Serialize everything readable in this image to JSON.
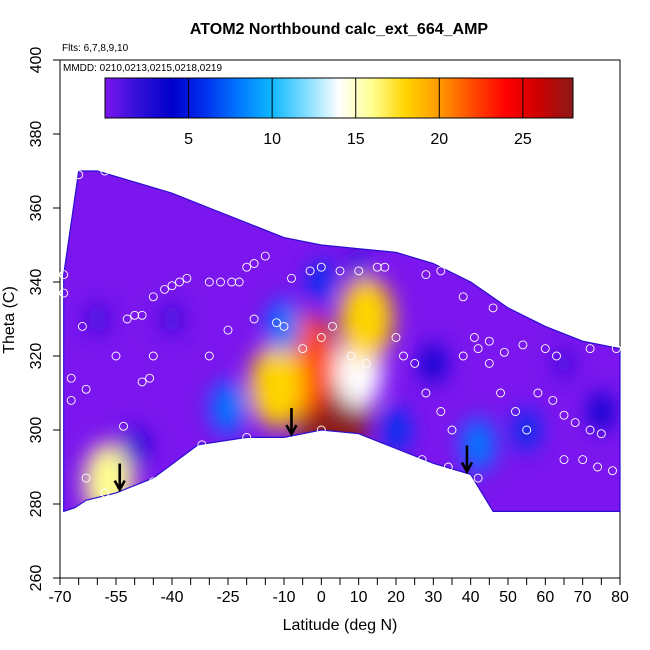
{
  "chart_data": {
    "type": "heatmap",
    "title": "ATOM2 Northbound calc_ext_664_AMP",
    "flights_note": "Flts: 6,7,8,9,10",
    "dates_note": "MMDD: 0210,0213,0215,0218,0219",
    "xlabel": "Latitude (deg N)",
    "ylabel": "Theta (C)",
    "xlim": [
      -70,
      80
    ],
    "ylim": [
      260,
      400
    ],
    "x_ticks": [
      -70,
      -55,
      -40,
      -25,
      -10,
      0,
      10,
      20,
      30,
      40,
      50,
      60,
      70,
      80
    ],
    "x_minor_ticks": [
      -65,
      -60,
      -50,
      -45,
      -35,
      -30,
      -20,
      -15,
      -5,
      5,
      15,
      25,
      35,
      45,
      55,
      65,
      75
    ],
    "y_ticks": [
      260,
      280,
      300,
      320,
      340,
      360,
      380,
      400
    ],
    "colorbar": {
      "range": [
        0,
        28
      ],
      "ticks": [
        5,
        10,
        15,
        20,
        25
      ],
      "colors": [
        "#7b16ee",
        "#3010d8",
        "#0000cc",
        "#0030ee",
        "#0078ff",
        "#10b8ff",
        "#80dcff",
        "#ffffff",
        "#ffff90",
        "#ffd400",
        "#ff9a00",
        "#ff4a00",
        "#ff0000",
        "#cc0000",
        "#8b1a1a"
      ]
    },
    "field_outline": [
      [
        -69,
        278
      ],
      [
        -69,
        342
      ],
      [
        -65,
        370
      ],
      [
        -60,
        370
      ],
      [
        -50,
        367
      ],
      [
        -40,
        364
      ],
      [
        -30,
        360
      ],
      [
        -20,
        356
      ],
      [
        -10,
        352
      ],
      [
        0,
        350
      ],
      [
        10,
        349
      ],
      [
        20,
        348
      ],
      [
        30,
        345
      ],
      [
        40,
        340
      ],
      [
        50,
        333
      ],
      [
        60,
        328
      ],
      [
        70,
        324
      ],
      [
        80,
        322
      ],
      [
        80,
        278
      ],
      [
        46,
        278
      ],
      [
        40,
        288
      ],
      [
        30,
        291
      ],
      [
        20,
        295
      ],
      [
        10,
        299
      ],
      [
        0,
        300
      ],
      [
        -10,
        298
      ],
      [
        -20,
        298
      ],
      [
        -33,
        296
      ],
      [
        -45,
        287
      ],
      [
        -55,
        283
      ],
      [
        -63,
        281
      ],
      [
        -66,
        279
      ]
    ],
    "hotspots": [
      {
        "lat": 3,
        "theta": 306,
        "value": 27
      },
      {
        "lat": -5,
        "theta": 318,
        "value": 22
      },
      {
        "lat": -12,
        "theta": 312,
        "value": 17
      },
      {
        "lat": 10,
        "theta": 316,
        "value": 14
      },
      {
        "lat": 12,
        "theta": 330,
        "value": 17
      },
      {
        "lat": 20,
        "theta": 300,
        "value": 6
      },
      {
        "lat": 42,
        "theta": 296,
        "value": 8
      },
      {
        "lat": -57,
        "theta": 286,
        "value": 15
      },
      {
        "lat": -25,
        "theta": 306,
        "value": 8
      },
      {
        "lat": -10,
        "theta": 328,
        "value": 8
      },
      {
        "lat": 0,
        "theta": 340,
        "value": 5
      },
      {
        "lat": -50,
        "theta": 295,
        "value": 4
      },
      {
        "lat": 55,
        "theta": 300,
        "value": 5
      },
      {
        "lat": 75,
        "theta": 305,
        "value": 4
      },
      {
        "lat": 30,
        "theta": 318,
        "value": 4
      },
      {
        "lat": -40,
        "theta": 330,
        "value": 2
      },
      {
        "lat": -60,
        "theta": 330,
        "value": 2
      },
      {
        "lat": 10,
        "theta": 345,
        "value": 2
      },
      {
        "lat": 65,
        "theta": 318,
        "value": 1
      }
    ],
    "arrows_lat": [
      -54,
      -8,
      39
    ],
    "observation_points": [
      [
        -68,
        369
      ],
      [
        -65,
        369
      ],
      [
        -58,
        370
      ],
      [
        -68,
        359
      ],
      [
        -69,
        342
      ],
      [
        -69,
        337
      ],
      [
        -64,
        328
      ],
      [
        -67,
        314
      ],
      [
        -63,
        311
      ],
      [
        -67,
        308
      ],
      [
        -55,
        320
      ],
      [
        -50,
        331
      ],
      [
        -52,
        330
      ],
      [
        -48,
        331
      ],
      [
        -45,
        336
      ],
      [
        -42,
        338
      ],
      [
        -40,
        339
      ],
      [
        -38,
        340
      ],
      [
        -36,
        341
      ],
      [
        -30,
        340
      ],
      [
        -27,
        340
      ],
      [
        -24,
        340
      ],
      [
        -22,
        340
      ],
      [
        -20,
        344
      ],
      [
        -18,
        345
      ],
      [
        -15,
        347
      ],
      [
        -8,
        341
      ],
      [
        -3,
        343
      ],
      [
        0,
        344
      ],
      [
        5,
        343
      ],
      [
        10,
        343
      ],
      [
        15,
        344
      ],
      [
        17,
        344
      ],
      [
        -53,
        301
      ],
      [
        -46,
        314
      ],
      [
        -45,
        320
      ],
      [
        -30,
        320
      ],
      [
        -25,
        327
      ],
      [
        -18,
        330
      ],
      [
        -12,
        329
      ],
      [
        -10,
        328
      ],
      [
        -5,
        322
      ],
      [
        0,
        325
      ],
      [
        3,
        328
      ],
      [
        8,
        320
      ],
      [
        12,
        318
      ],
      [
        20,
        325
      ],
      [
        22,
        320
      ],
      [
        25,
        318
      ],
      [
        28,
        310
      ],
      [
        32,
        305
      ],
      [
        35,
        300
      ],
      [
        38,
        320
      ],
      [
        42,
        322
      ],
      [
        45,
        318
      ],
      [
        48,
        310
      ],
      [
        52,
        305
      ],
      [
        55,
        300
      ],
      [
        58,
        310
      ],
      [
        62,
        308
      ],
      [
        65,
        304
      ],
      [
        68,
        302
      ],
      [
        72,
        300
      ],
      [
        75,
        299
      ],
      [
        -60,
        280
      ],
      [
        -58,
        283
      ],
      [
        -63,
        287
      ],
      [
        -45,
        286
      ],
      [
        -32,
        296
      ],
      [
        -20,
        298
      ],
      [
        0,
        300
      ],
      [
        5,
        298
      ],
      [
        10,
        297
      ],
      [
        15,
        295
      ],
      [
        27,
        292
      ],
      [
        34,
        290
      ],
      [
        42,
        287
      ],
      [
        65,
        292
      ],
      [
        70,
        292
      ],
      [
        74,
        290
      ],
      [
        78,
        289
      ],
      [
        28,
        342
      ],
      [
        32,
        343
      ],
      [
        38,
        336
      ],
      [
        46,
        333
      ],
      [
        41,
        325
      ],
      [
        54,
        323
      ],
      [
        60,
        322
      ],
      [
        45,
        324
      ],
      [
        49,
        321
      ],
      [
        63,
        320
      ],
      [
        72,
        322
      ],
      [
        79,
        322
      ],
      [
        -48,
        313
      ]
    ]
  }
}
